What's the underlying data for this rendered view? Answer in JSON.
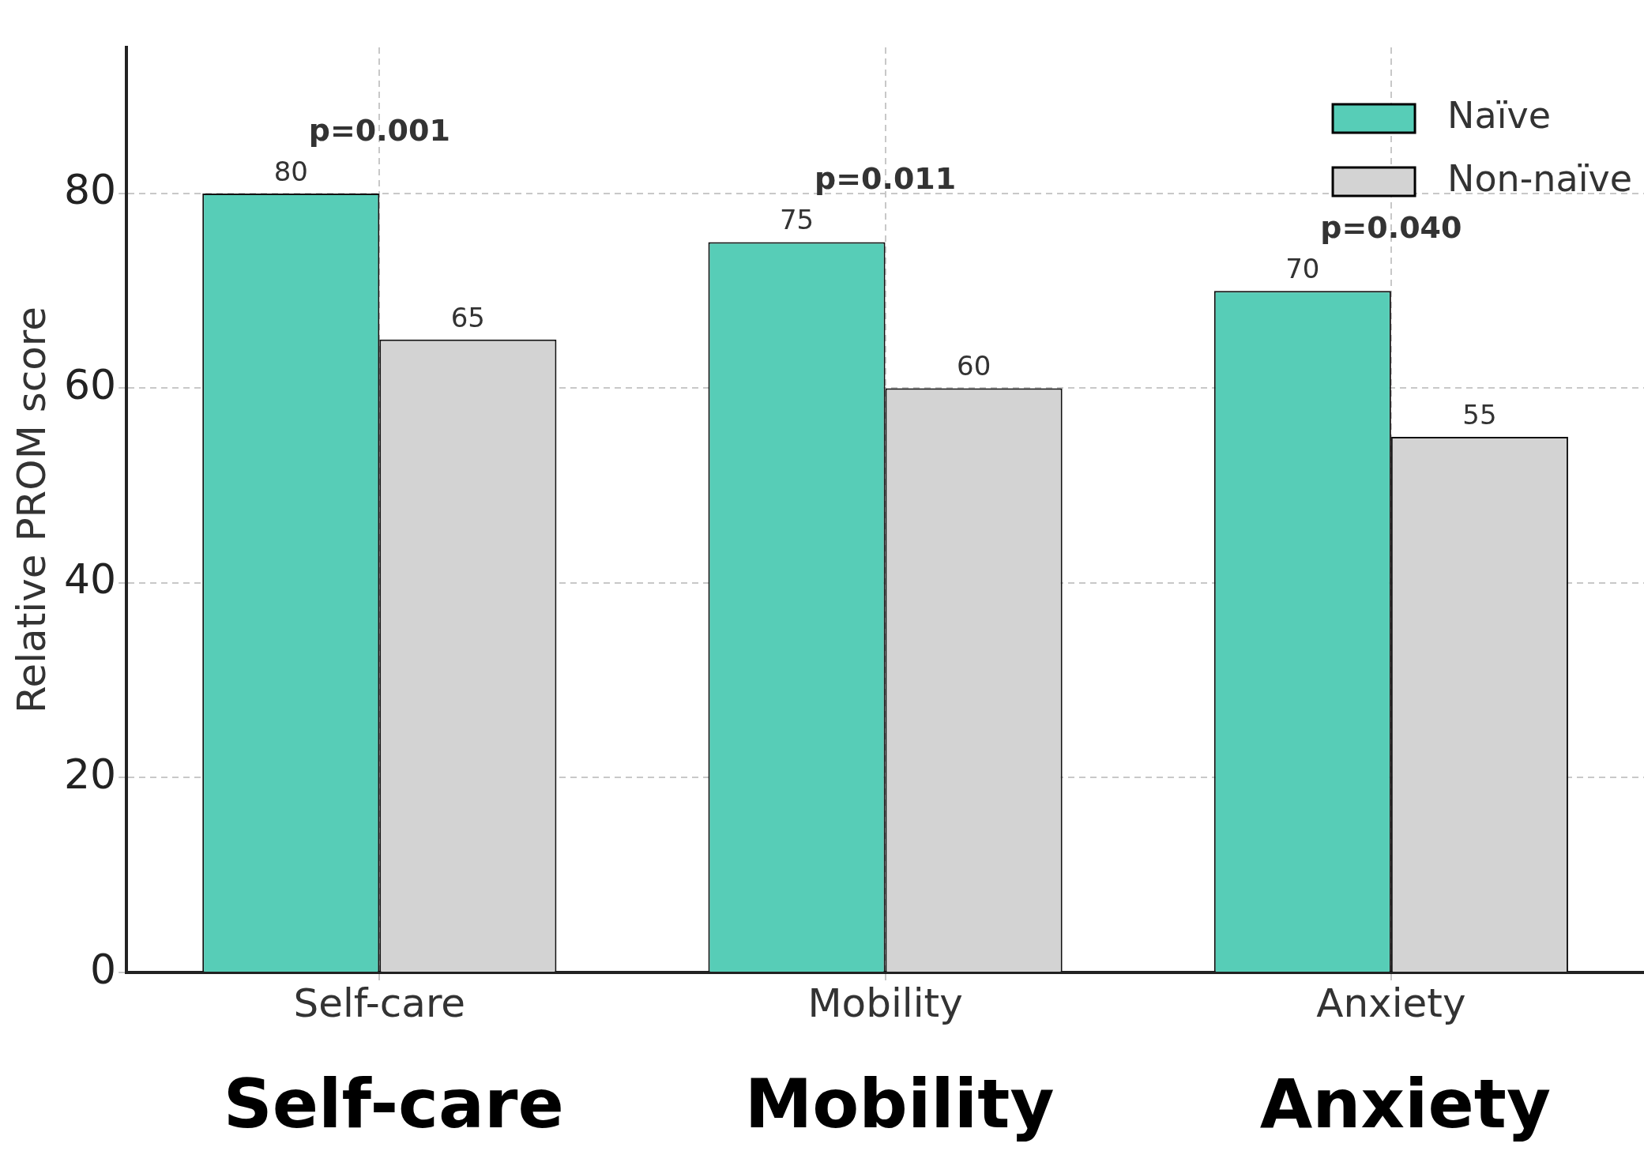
{
  "chart_data": {
    "type": "bar",
    "ylabel": "Relative PROM score",
    "categories": [
      "Self-care",
      "Mobility",
      "Anxiety"
    ],
    "series": [
      {
        "name": "Naïve",
        "color": "#57cdb7",
        "values": [
          80,
          75,
          70
        ]
      },
      {
        "name": "Non-naïve",
        "color": "#d3d3d3",
        "values": [
          65,
          60,
          55
        ]
      }
    ],
    "ylim": [
      0,
      95
    ],
    "yticks": [
      0,
      20,
      40,
      60,
      80
    ],
    "grid": true,
    "legend": "top right",
    "data_labels": true,
    "annotations": [
      "p=0.001",
      "p=0.011",
      "p=0.040",
      "Self-care",
      "Mobility",
      "Anxiety"
    ]
  }
}
